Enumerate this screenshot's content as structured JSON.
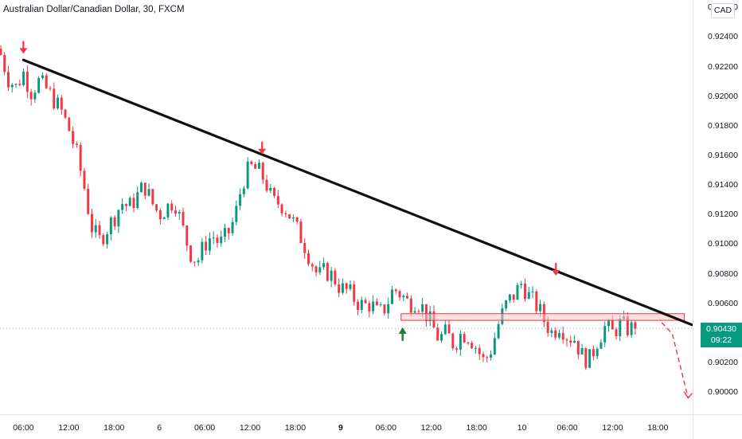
{
  "title": "Australian Dollar/Canadian Dollar, 30, FXCM",
  "currency_badge": "CAD",
  "last_price": {
    "value": "0.90430",
    "countdown": "09:22"
  },
  "colors": {
    "up": "#089981",
    "down": "#f23645",
    "trendline": "#111111",
    "zone_fill": "#f7c5c9",
    "zone_stroke": "#f23645",
    "last_price_bg": "#089981",
    "axis_border": "#e0e3eb"
  },
  "y_ticks": [
    "0.92600",
    "0.92400",
    "0.92200",
    "0.92000",
    "0.91800",
    "0.91600",
    "0.91400",
    "0.91200",
    "0.91000",
    "0.90800",
    "0.90600",
    "0.90400",
    "0.90200",
    "0.90000"
  ],
  "x_ticks": [
    {
      "label": "06:00",
      "t": 6
    },
    {
      "label": "12:00",
      "t": 12
    },
    {
      "label": "18:00",
      "t": 18
    },
    {
      "label": "6",
      "t": 24
    },
    {
      "label": "06:00",
      "t": 30
    },
    {
      "label": "12:00",
      "t": 36
    },
    {
      "label": "18:00",
      "t": 42
    },
    {
      "label": "9",
      "t": 48,
      "bold": true
    },
    {
      "label": "06:00",
      "t": 54
    },
    {
      "label": "12:00",
      "t": 60
    },
    {
      "label": "18:00",
      "t": 66
    },
    {
      "label": "10",
      "t": 72
    },
    {
      "label": "06:00",
      "t": 78
    },
    {
      "label": "12:00",
      "t": 84
    },
    {
      "label": "18:00",
      "t": 90
    }
  ],
  "chart_data": {
    "type": "candlestick",
    "title": "Australian Dollar/Canadian Dollar, 30, FXCM",
    "x_unit": "hours from 00:00 on day 5",
    "ylim": [
      0.8985,
      0.9265
    ],
    "xlim": [
      2.9,
      94.6
    ],
    "close_path": [
      [
        3.0,
        0.9228
      ],
      [
        4.0,
        0.9212
      ],
      [
        5.0,
        0.9206
      ],
      [
        6.0,
        0.9216
      ],
      [
        7.0,
        0.9203
      ],
      [
        8.0,
        0.921
      ],
      [
        9.0,
        0.9205
      ],
      [
        10.0,
        0.9198
      ],
      [
        11.0,
        0.919
      ],
      [
        12.0,
        0.9178
      ],
      [
        13.0,
        0.9162
      ],
      [
        14.0,
        0.914
      ],
      [
        15.0,
        0.9112
      ],
      [
        16.0,
        0.9102
      ],
      [
        17.0,
        0.911
      ],
      [
        18.0,
        0.9118
      ],
      [
        19.0,
        0.9128
      ],
      [
        20.0,
        0.9125
      ],
      [
        21.0,
        0.9132
      ],
      [
        22.0,
        0.914
      ],
      [
        23.0,
        0.9128
      ],
      [
        24.0,
        0.912
      ],
      [
        25.0,
        0.9125
      ],
      [
        26.0,
        0.913
      ],
      [
        27.0,
        0.9112
      ],
      [
        28.0,
        0.9095
      ],
      [
        29.0,
        0.9088
      ],
      [
        30.0,
        0.91
      ],
      [
        31.0,
        0.9106
      ],
      [
        32.0,
        0.91
      ],
      [
        33.0,
        0.9106
      ],
      [
        34.0,
        0.9118
      ],
      [
        35.0,
        0.9142
      ],
      [
        36.0,
        0.9152
      ],
      [
        37.0,
        0.915
      ],
      [
        38.0,
        0.9143
      ],
      [
        39.0,
        0.9128
      ],
      [
        40.0,
        0.9128
      ],
      [
        41.0,
        0.9122
      ],
      [
        42.0,
        0.9112
      ],
      [
        43.0,
        0.9102
      ],
      [
        44.0,
        0.909
      ],
      [
        45.0,
        0.9078
      ],
      [
        46.0,
        0.9082
      ],
      [
        47.0,
        0.9078
      ],
      [
        48.0,
        0.907
      ],
      [
        49.0,
        0.9068
      ],
      [
        50.0,
        0.9062
      ],
      [
        51.0,
        0.9058
      ],
      [
        52.0,
        0.906
      ],
      [
        53.0,
        0.9052
      ],
      [
        54.0,
        0.9058
      ],
      [
        55.0,
        0.907
      ],
      [
        56.0,
        0.9066
      ],
      [
        57.0,
        0.906
      ],
      [
        58.0,
        0.9062
      ],
      [
        59.0,
        0.9056
      ],
      [
        60.0,
        0.9046
      ],
      [
        61.0,
        0.9036
      ],
      [
        62.0,
        0.904
      ],
      [
        63.0,
        0.9032
      ],
      [
        64.0,
        0.904
      ],
      [
        65.0,
        0.9038
      ],
      [
        66.0,
        0.903
      ],
      [
        67.0,
        0.902
      ],
      [
        68.0,
        0.903
      ],
      [
        69.0,
        0.9048
      ],
      [
        70.0,
        0.906
      ],
      [
        71.0,
        0.9066
      ],
      [
        72.0,
        0.9074
      ],
      [
        73.0,
        0.9064
      ],
      [
        74.0,
        0.9058
      ],
      [
        75.0,
        0.9048
      ],
      [
        76.0,
        0.904
      ],
      [
        77.0,
        0.9046
      ],
      [
        78.0,
        0.9038
      ],
      [
        79.0,
        0.9036
      ],
      [
        80.0,
        0.9024
      ],
      [
        81.0,
        0.9022
      ],
      [
        82.0,
        0.9035
      ],
      [
        83.0,
        0.9044
      ],
      [
        84.0,
        0.904
      ],
      [
        85.0,
        0.9046
      ],
      [
        86.0,
        0.9043
      ],
      [
        87.0,
        0.9043
      ]
    ],
    "candle_count": 168,
    "trendline": {
      "start": [
        6.0,
        0.92245
      ],
      "end": [
        94.5,
        0.90455
      ],
      "color": "#111111"
    },
    "resistance_zone": {
      "y_low": 0.90485,
      "y_high": 0.9053,
      "x_start": 56.0,
      "x_end": 93.5
    },
    "markers": [
      {
        "type": "down-arrow",
        "x": 6.0,
        "y": 0.9233,
        "color": "#f23645"
      },
      {
        "type": "down-arrow",
        "x": 37.6,
        "y": 0.9165,
        "color": "#f23645"
      },
      {
        "type": "down-arrow",
        "x": 76.5,
        "y": 0.9083,
        "color": "#f23645"
      },
      {
        "type": "up-arrow",
        "x": 56.2,
        "y": 0.904,
        "color": "#1e7b3c"
      }
    ],
    "projection": {
      "points": [
        [
          90.5,
          0.9047
        ],
        [
          91.9,
          0.90395
        ],
        [
          94.0,
          0.8996
        ]
      ],
      "style": "dashed",
      "color": "#f23645"
    },
    "last_price_line": 0.9043
  }
}
